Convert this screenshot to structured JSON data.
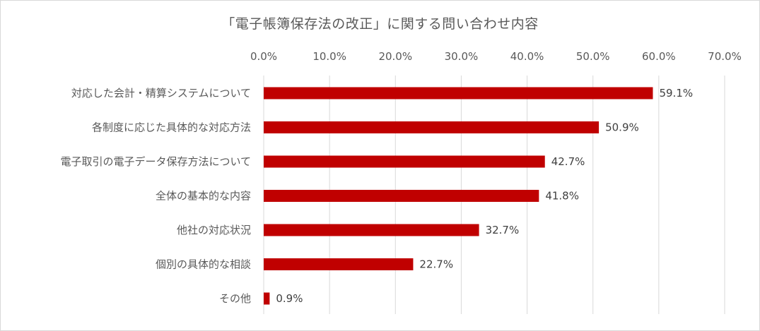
{
  "chart_data": {
    "type": "bar",
    "orientation": "horizontal",
    "title": "「電子帳簿保存法の改正」に関する問い合わせ内容",
    "categories": [
      "対応した会計・精算システムについて",
      "各制度に応じた具体的な対応方法",
      "電子取引の電子データ保存方法について",
      "全体の基本的な内容",
      "他社の対応状況",
      "個別の具体的な相談",
      "その他"
    ],
    "values": [
      59.1,
      50.9,
      42.7,
      41.8,
      32.7,
      22.7,
      0.9
    ],
    "data_labels": [
      "59.1%",
      "50.9%",
      "42.7%",
      "41.8%",
      "32.7%",
      "22.7%",
      "0.9%"
    ],
    "xlim": [
      0,
      70
    ],
    "x_ticks": [
      "0.0%",
      "10.0%",
      "20.0%",
      "30.0%",
      "40.0%",
      "50.0%",
      "60.0%",
      "70.0%"
    ],
    "x_axis_position": "top",
    "grid": true,
    "legend": "none",
    "xlabel": "",
    "ylabel": "",
    "bar_color": "#c00000",
    "grid_color": "#d9d9d9",
    "text_color": "#595959"
  }
}
